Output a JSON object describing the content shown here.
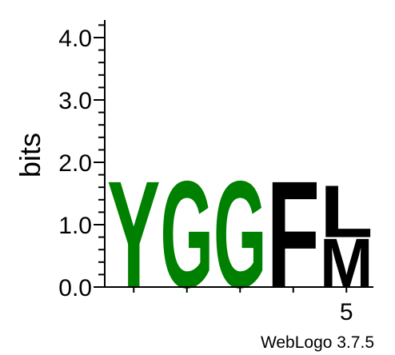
{
  "chart_data": {
    "type": "sequence-logo",
    "ylabel": "bits",
    "ylim": [
      0,
      4.3
    ],
    "yticks": [
      {
        "value": 0,
        "label": "0.0"
      },
      {
        "value": 1,
        "label": "1.0"
      },
      {
        "value": 2,
        "label": "2.0"
      },
      {
        "value": 3,
        "label": "3.0"
      },
      {
        "value": 4,
        "label": "4.0"
      }
    ],
    "positions": [
      1,
      2,
      3,
      4,
      5
    ],
    "xtick_labels": [
      {
        "position": 5,
        "label": "5"
      }
    ],
    "columns": [
      {
        "position": 1,
        "stack": [
          {
            "letter": "Y",
            "bits": 1.75,
            "color": "#008000"
          }
        ]
      },
      {
        "position": 2,
        "stack": [
          {
            "letter": "G",
            "bits": 1.75,
            "color": "#008000"
          }
        ]
      },
      {
        "position": 3,
        "stack": [
          {
            "letter": "G",
            "bits": 1.75,
            "color": "#008000"
          }
        ]
      },
      {
        "position": 4,
        "stack": [
          {
            "letter": "F",
            "bits": 1.75,
            "color": "#000000"
          }
        ]
      },
      {
        "position": 5,
        "stack": [
          {
            "letter": "M",
            "bits": 0.8,
            "color": "#000000"
          },
          {
            "letter": "L",
            "bits": 0.85,
            "color": "#000000"
          }
        ]
      }
    ],
    "credit": "WebLogo 3.7.5"
  }
}
